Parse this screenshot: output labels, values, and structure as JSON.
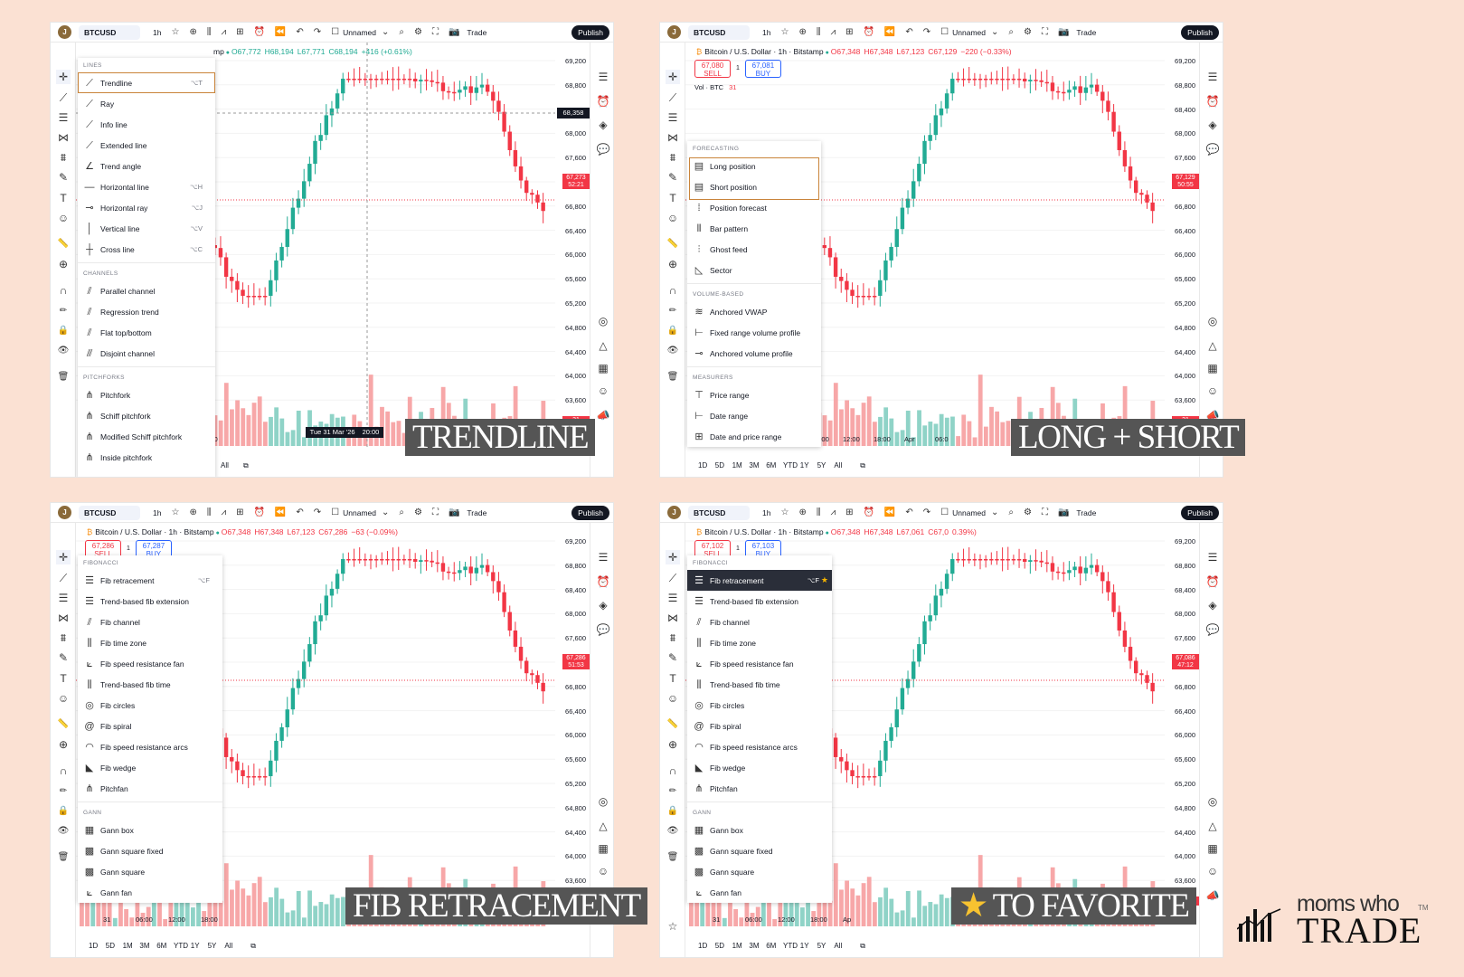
{
  "toolbar": {
    "avatar_initial": "J",
    "symbol": "BTCUSD",
    "interval": "1h",
    "layout_name": "Unnamed",
    "trade_label": "Trade",
    "publish_label": "Publish"
  },
  "price_axis": [
    "69,200",
    "68,800",
    "68,400",
    "68,000",
    "67,600",
    "67,200",
    "66,800",
    "66,400",
    "66,000",
    "65,600",
    "65,200",
    "64,800",
    "64,400",
    "64,000",
    "63,600"
  ],
  "panels": [
    {
      "caption": "TRENDLINE",
      "ohlc": {
        "name": "mp",
        "o": "O67,772",
        "h": "H68,194",
        "l": "L67,771",
        "c": "C68,194",
        "chg": "+416 (+0.61%)",
        "color": "green"
      },
      "crosshair_price": "68,358",
      "crosshair_time": "Tue 31 Mar '26",
      "crosshair_time2": "20:00",
      "last_price": "67,273",
      "last_countdown": "52:21",
      "bottom_value": "31",
      "time_axis": [
        "31",
        "06:00",
        "12:0",
        "06:00"
      ],
      "ranges": [
        "All"
      ],
      "menu": {
        "sections": [
          {
            "header": "LINES",
            "items": [
              {
                "label": "Trendline",
                "icon": "trendline-icon",
                "kbd": "⌥T",
                "boxed": true
              },
              {
                "label": "Ray",
                "icon": "ray-icon"
              },
              {
                "label": "Info line",
                "icon": "info-line-icon"
              },
              {
                "label": "Extended line",
                "icon": "extended-line-icon"
              },
              {
                "label": "Trend angle",
                "icon": "trend-angle-icon"
              },
              {
                "label": "Horizontal line",
                "icon": "horizontal-line-icon",
                "kbd": "⌥H"
              },
              {
                "label": "Horizontal ray",
                "icon": "horizontal-ray-icon",
                "kbd": "⌥J"
              },
              {
                "label": "Vertical line",
                "icon": "vertical-line-icon",
                "kbd": "⌥V"
              },
              {
                "label": "Cross line",
                "icon": "cross-line-icon",
                "kbd": "⌥C"
              }
            ]
          },
          {
            "header": "CHANNELS",
            "items": [
              {
                "label": "Parallel channel",
                "icon": "parallel-channel-icon"
              },
              {
                "label": "Regression trend",
                "icon": "regression-trend-icon"
              },
              {
                "label": "Flat top/bottom",
                "icon": "flat-top-bottom-icon"
              },
              {
                "label": "Disjoint channel",
                "icon": "disjoint-channel-icon"
              }
            ]
          },
          {
            "header": "PITCHFORKS",
            "items": [
              {
                "label": "Pitchfork",
                "icon": "pitchfork-icon"
              },
              {
                "label": "Schiff pitchfork",
                "icon": "schiff-pitchfork-icon"
              },
              {
                "label": "Modified Schiff pitchfork",
                "icon": "modified-schiff-pitchfork-icon"
              },
              {
                "label": "Inside pitchfork",
                "icon": "inside-pitchfork-icon"
              }
            ]
          }
        ]
      }
    },
    {
      "caption": "LONG + SHORT",
      "ohlc": {
        "name": "Bitcoin / U.S. Dollar · 1h · Bitstamp",
        "o": "O67,348",
        "h": "H67,348",
        "l": "L67,123",
        "c": "C67,129",
        "chg": "−220 (−0.33%)",
        "color": "red"
      },
      "sell": {
        "price": "67,080",
        "label": "SELL"
      },
      "buy": {
        "price": "67,081",
        "label": "BUY"
      },
      "spread": "1",
      "vol_label": "Vol · BTC",
      "vol_value": "31",
      "last_price": "67,129",
      "last_countdown": "50:55",
      "bottom_value": "31",
      "time_axis": [
        "8:00",
        "06:00",
        "12:00",
        "18:00",
        "06:00",
        "12:00",
        "18:00",
        "Apr",
        "06:0"
      ],
      "ranges": [
        "1D",
        "5D",
        "1M",
        "3M",
        "6M",
        "YTD",
        "1Y",
        "5Y",
        "All"
      ],
      "menu": {
        "sections": [
          {
            "header": "FORECASTING",
            "items": [
              {
                "label": "Long position",
                "icon": "long-position-icon",
                "boxed": true
              },
              {
                "label": "Short position",
                "icon": "short-position-icon",
                "boxed": true
              },
              {
                "label": "Position forecast",
                "icon": "position-forecast-icon"
              },
              {
                "label": "Bar pattern",
                "icon": "bar-pattern-icon"
              },
              {
                "label": "Ghost feed",
                "icon": "ghost-feed-icon"
              },
              {
                "label": "Sector",
                "icon": "sector-icon"
              }
            ]
          },
          {
            "header": "VOLUME-BASED",
            "items": [
              {
                "label": "Anchored VWAP",
                "icon": "anchored-vwap-icon"
              },
              {
                "label": "Fixed range volume profile",
                "icon": "fixed-range-volume-profile-icon"
              },
              {
                "label": "Anchored volume profile",
                "icon": "anchored-volume-profile-icon"
              }
            ]
          },
          {
            "header": "MEASURERS",
            "items": [
              {
                "label": "Price range",
                "icon": "price-range-icon"
              },
              {
                "label": "Date range",
                "icon": "date-range-icon"
              },
              {
                "label": "Date and price range",
                "icon": "date-and-price-range-icon"
              }
            ]
          }
        ]
      }
    },
    {
      "caption": "FIB RETRACEMENT",
      "ohlc": {
        "name": "Bitcoin / U.S. Dollar · 1h · Bitstamp",
        "o": "O67,348",
        "h": "H67,348",
        "l": "L67,123",
        "c": "C67,286",
        "chg": "−63 (−0.09%)",
        "color": "red"
      },
      "sell": {
        "price": "67,286",
        "label": "SELL"
      },
      "buy": {
        "price": "67,287",
        "label": "BUY"
      },
      "spread": "1",
      "last_price": "67,286",
      "last_countdown": "51:53",
      "bottom_value": "45",
      "time_axis": [
        "31",
        "06:00",
        "12:00",
        "18:00"
      ],
      "ranges": [
        "1D",
        "5D",
        "1M",
        "3M",
        "6M",
        "YTD",
        "1Y",
        "5Y",
        "All"
      ],
      "menu": {
        "sections": [
          {
            "header": "FIBONACCI",
            "items": [
              {
                "label": "Fib retracement",
                "icon": "fib-retracement-icon",
                "kbd": "⌥F"
              },
              {
                "label": "Trend-based fib extension",
                "icon": "trend-fib-extension-icon"
              },
              {
                "label": "Fib channel",
                "icon": "fib-channel-icon"
              },
              {
                "label": "Fib time zone",
                "icon": "fib-time-zone-icon"
              },
              {
                "label": "Fib speed resistance fan",
                "icon": "fib-speed-fan-icon"
              },
              {
                "label": "Trend-based fib time",
                "icon": "trend-fib-time-icon"
              },
              {
                "label": "Fib circles",
                "icon": "fib-circles-icon"
              },
              {
                "label": "Fib spiral",
                "icon": "fib-spiral-icon"
              },
              {
                "label": "Fib speed resistance arcs",
                "icon": "fib-speed-arcs-icon"
              },
              {
                "label": "Fib wedge",
                "icon": "fib-wedge-icon"
              },
              {
                "label": "Pitchfan",
                "icon": "pitchfan-icon"
              }
            ]
          },
          {
            "header": "GANN",
            "items": [
              {
                "label": "Gann box",
                "icon": "gann-box-icon"
              },
              {
                "label": "Gann square fixed",
                "icon": "gann-square-fixed-icon"
              },
              {
                "label": "Gann square",
                "icon": "gann-square-icon"
              },
              {
                "label": "Gann fan",
                "icon": "gann-fan-icon"
              }
            ]
          }
        ]
      }
    },
    {
      "caption": "TO FAVORITE",
      "caption_star": "★",
      "ohlc": {
        "name": "Bitcoin / U.S. Dollar · 1h · Bitstamp",
        "o": "O67,348",
        "h": "H67,348",
        "l": "L67,061",
        "c": "C67,0",
        "chg": "0.39%)",
        "color": "red"
      },
      "sell": {
        "price": "67,102",
        "label": "SELL"
      },
      "buy": {
        "price": "67,103",
        "label": "BUY"
      },
      "spread": "1",
      "last_price": "67,086",
      "last_countdown": "47:12",
      "bottom_value": "45",
      "time_axis": [
        "31",
        "06:00",
        "12:00",
        "18:00",
        "Ap"
      ],
      "ranges": [
        "1D",
        "5D",
        "1M",
        "3M",
        "6M",
        "YTD",
        "1Y",
        "5Y",
        "All"
      ],
      "menu": {
        "sections": [
          {
            "header": "FIBONACCI",
            "items": [
              {
                "label": "Fib retracement",
                "icon": "fib-retracement-icon",
                "kbd": "⌥F",
                "dark": true,
                "star": true
              },
              {
                "label": "Trend-based fib extension",
                "icon": "trend-fib-extension-icon"
              },
              {
                "label": "Fib channel",
                "icon": "fib-channel-icon"
              },
              {
                "label": "Fib time zone",
                "icon": "fib-time-zone-icon"
              },
              {
                "label": "Fib speed resistance fan",
                "icon": "fib-speed-fan-icon"
              },
              {
                "label": "Trend-based fib time",
                "icon": "trend-fib-time-icon"
              },
              {
                "label": "Fib circles",
                "icon": "fib-circles-icon"
              },
              {
                "label": "Fib spiral",
                "icon": "fib-spiral-icon"
              },
              {
                "label": "Fib speed resistance arcs",
                "icon": "fib-speed-arcs-icon"
              },
              {
                "label": "Fib wedge",
                "icon": "fib-wedge-icon"
              },
              {
                "label": "Pitchfan",
                "icon": "pitchfan-icon"
              }
            ]
          },
          {
            "header": "GANN",
            "items": [
              {
                "label": "Gann box",
                "icon": "gann-box-icon"
              },
              {
                "label": "Gann square fixed",
                "icon": "gann-square-fixed-icon"
              },
              {
                "label": "Gann square",
                "icon": "gann-square-icon"
              },
              {
                "label": "Gann fan",
                "icon": "gann-fan-icon"
              }
            ]
          }
        ]
      }
    }
  ],
  "colors": {
    "up": "#22ab94",
    "down": "#f23645",
    "vol_up": "#8fd3c7",
    "vol_down": "#f7a7a8",
    "accent_box": "#c9843a",
    "caption_bg": "#555555"
  },
  "logo": {
    "line1": "moms who",
    "line2": "TRADE",
    "mark": "TM"
  }
}
